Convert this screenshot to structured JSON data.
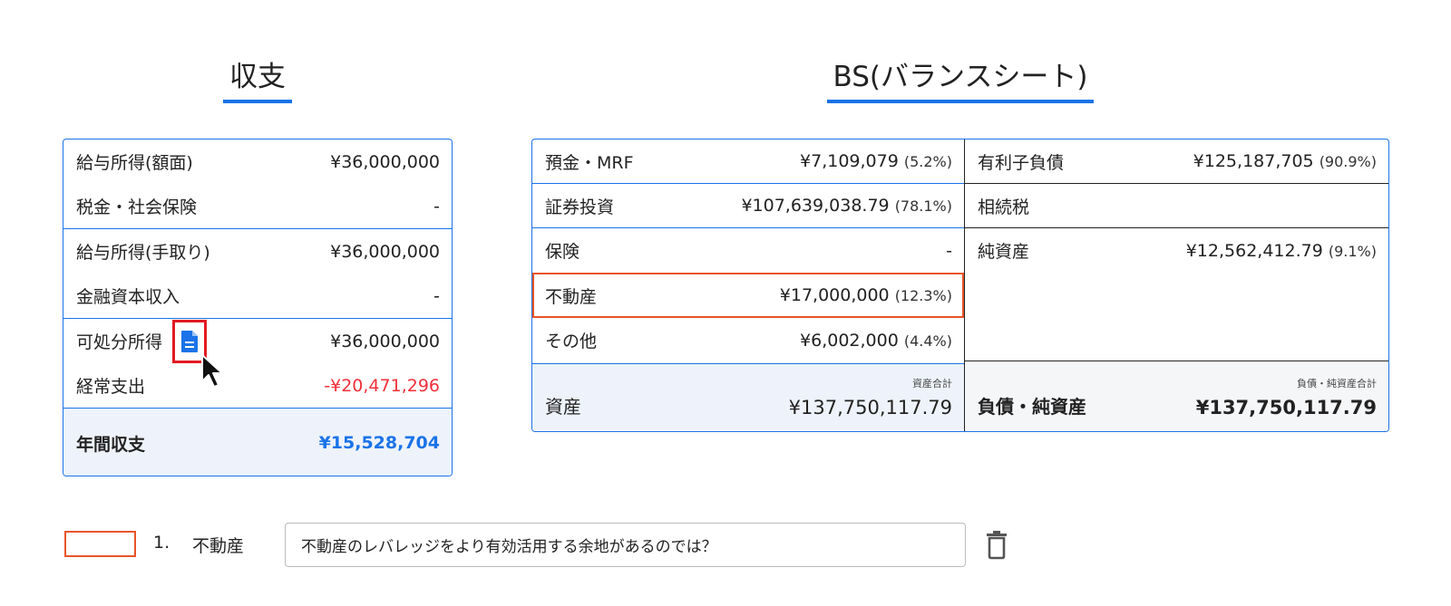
{
  "titles": {
    "income": "収支",
    "bs": "BS(バランスシート)"
  },
  "income": {
    "rows": [
      {
        "label": "給与所得(額面)",
        "value": "¥36,000,000"
      },
      {
        "label": "税金・社会保険",
        "value": "-"
      },
      {
        "label": "給与所得(手取り)",
        "value": "¥36,000,000"
      },
      {
        "label": "金融資本収入",
        "value": "-"
      },
      {
        "label": "可処分所得",
        "value": "¥36,000,000"
      },
      {
        "label": "経常支出",
        "value": "-¥20,471,296"
      }
    ],
    "total": {
      "label": "年間収支",
      "value": "¥15,528,704"
    }
  },
  "bs": {
    "assets": [
      {
        "label": "預金・MRF",
        "value": "¥7,109,079",
        "pct": "(5.2%)"
      },
      {
        "label": "証券投資",
        "value": "¥107,639,038.79",
        "pct": "(78.1%)"
      },
      {
        "label": "保険",
        "value": "-",
        "pct": ""
      },
      {
        "label": "不動産",
        "value": "¥17,000,000",
        "pct": "(12.3%)"
      },
      {
        "label": "その他",
        "value": "¥6,002,000",
        "pct": "(4.4%)"
      }
    ],
    "liabilities": [
      {
        "label": "有利子負債",
        "value": "¥125,187,705",
        "pct": "(90.9%)"
      },
      {
        "label": "相続税",
        "value": "",
        "pct": ""
      },
      {
        "label": "純資産",
        "value": "¥12,562,412.79",
        "pct": "(9.1%)"
      }
    ],
    "asset_total": {
      "name": "資産",
      "caption": "資産合計",
      "value": "¥137,750,117.79"
    },
    "liab_total": {
      "name": "負債・純資産",
      "caption": "負債・純資産合計",
      "value": "¥137,750,117.79"
    }
  },
  "comment": {
    "number": "1.",
    "label": "不動産",
    "text": "不動産のレバレッジをより有効活用する余地があるのでは？"
  },
  "colors": {
    "accent": "#1a73e8",
    "negative": "#f0303a",
    "highlight": "#e8542a",
    "icon_frame": "#e11b22"
  },
  "icons": {
    "doc": "document-icon",
    "trash": "trash-icon",
    "cursor": "mouse-cursor-icon"
  }
}
